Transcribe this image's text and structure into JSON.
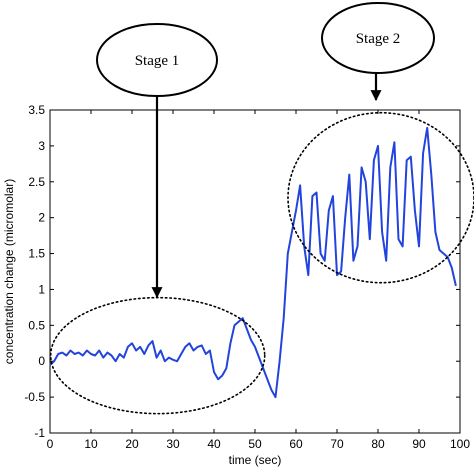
{
  "chart_data": {
    "type": "line",
    "title": "",
    "xlabel": "time (sec)",
    "ylabel": "concentration change (micromolar)",
    "xlim": [
      0,
      100
    ],
    "ylim": [
      -1,
      3.5
    ],
    "xticks": [
      0,
      10,
      20,
      30,
      40,
      50,
      60,
      70,
      80,
      90,
      100
    ],
    "yticks": [
      -1,
      -0.5,
      0,
      0.5,
      1,
      1.5,
      2,
      2.5,
      3,
      3.5
    ],
    "grid": false,
    "series_color": "#2244dd",
    "series": [
      {
        "x": [
          0,
          1,
          2,
          3,
          4,
          5,
          6,
          7,
          8,
          9,
          10,
          11,
          12,
          13,
          14,
          15,
          16,
          17,
          18,
          19,
          20,
          21,
          22,
          23,
          24,
          25,
          26,
          27,
          28,
          29,
          30,
          31,
          32,
          33,
          34,
          35,
          36,
          37,
          38,
          39,
          40,
          41,
          42,
          43,
          44,
          45,
          46,
          47,
          48,
          49,
          50,
          51,
          52,
          53,
          54,
          55,
          56,
          57,
          58,
          59,
          60,
          61,
          62,
          63,
          64,
          65,
          66,
          67,
          68,
          69,
          70,
          71,
          72,
          73,
          74,
          75,
          76,
          77,
          78,
          79,
          80,
          81,
          82,
          83,
          84,
          85,
          86,
          87,
          88,
          89,
          90,
          91,
          92,
          93,
          94,
          95,
          96,
          97,
          98,
          99
        ],
        "y": [
          -0.05,
          0.0,
          0.1,
          0.12,
          0.08,
          0.15,
          0.1,
          0.12,
          0.08,
          0.15,
          0.1,
          0.08,
          0.15,
          0.05,
          0.12,
          0.08,
          0.0,
          0.1,
          0.05,
          0.2,
          0.25,
          0.15,
          0.2,
          0.1,
          0.22,
          0.28,
          0.05,
          0.15,
          0.0,
          0.05,
          0.02,
          0.0,
          0.1,
          0.2,
          0.25,
          0.15,
          0.2,
          0.22,
          0.1,
          0.15,
          -0.15,
          -0.25,
          -0.2,
          -0.1,
          0.25,
          0.5,
          0.55,
          0.6,
          0.45,
          0.3,
          0.2,
          0.05,
          -0.1,
          -0.25,
          -0.4,
          -0.5,
          0.0,
          0.6,
          1.5,
          1.8,
          2.1,
          2.45,
          1.6,
          1.2,
          2.3,
          2.35,
          1.5,
          1.4,
          2.1,
          2.3,
          1.2,
          1.25,
          2.0,
          2.6,
          1.4,
          1.6,
          2.7,
          2.5,
          1.7,
          2.8,
          3.0,
          1.8,
          1.4,
          2.7,
          3.05,
          1.7,
          1.6,
          2.8,
          2.85,
          2.1,
          1.6,
          2.9,
          3.25,
          2.6,
          1.8,
          1.55,
          1.5,
          1.45,
          1.3,
          1.05
        ]
      }
    ],
    "annotations": [
      {
        "label": "Stage 1",
        "x": 27,
        "y": 0.05,
        "kind": "dotted-ellipse"
      },
      {
        "label": "Stage 2",
        "x": 80,
        "y": 2.25,
        "kind": "dotted-ellipse"
      }
    ]
  }
}
